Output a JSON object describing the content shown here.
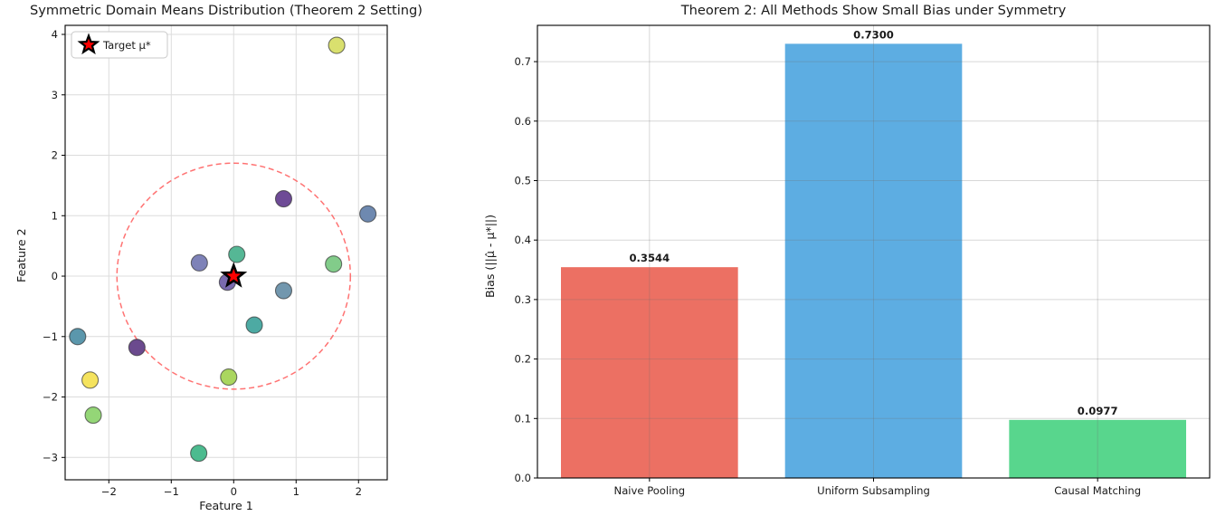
{
  "figure": {
    "background": "#ffffff"
  },
  "chart_data": [
    {
      "type": "scatter",
      "title": "Symmetric Domain Means Distribution (Theorem 2 Setting)",
      "xlabel": "Feature 1",
      "ylabel": "Feature 2",
      "xlim": [
        -2.7,
        2.46
      ],
      "ylim": [
        -3.37,
        4.15
      ],
      "xticks": [
        -2,
        -1,
        0,
        1,
        2
      ],
      "yticks": [
        -3,
        -2,
        -1,
        0,
        1,
        2,
        3,
        4
      ],
      "grid": true,
      "grid_color": "#dcdcdc",
      "legend": {
        "label": "Target μ*",
        "position": "upper-left",
        "marker": "star-icon",
        "marker_color": "#ff0000",
        "marker_edge": "#000000"
      },
      "target": {
        "x": 0,
        "y": 0,
        "color": "#ff0000",
        "edge": "#000000"
      },
      "radius_circle": {
        "cx": 0,
        "cy": 0,
        "r": 1.87,
        "color": "#ff5050",
        "dashed": true
      },
      "point_edge": "#2b2b2b",
      "points": [
        {
          "x": 1.65,
          "y": 3.82,
          "color": "#d9e06e"
        },
        {
          "x": 0.8,
          "y": 1.28,
          "color": "#6e4b96"
        },
        {
          "x": 2.15,
          "y": 1.03,
          "color": "#6e89b0"
        },
        {
          "x": 0.05,
          "y": 0.36,
          "color": "#55b795"
        },
        {
          "x": -0.55,
          "y": 0.22,
          "color": "#7e82b8"
        },
        {
          "x": 1.6,
          "y": 0.2,
          "color": "#82cc8a"
        },
        {
          "x": -0.1,
          "y": -0.1,
          "color": "#7a6aae"
        },
        {
          "x": 0.8,
          "y": -0.24,
          "color": "#7297ae"
        },
        {
          "x": 0.33,
          "y": -0.81,
          "color": "#4daaa3"
        },
        {
          "x": -2.5,
          "y": -1.0,
          "color": "#5b97ac"
        },
        {
          "x": -1.55,
          "y": -1.18,
          "color": "#6b4a8e"
        },
        {
          "x": -2.3,
          "y": -1.72,
          "color": "#f5e35e"
        },
        {
          "x": -0.08,
          "y": -1.67,
          "color": "#aad65f"
        },
        {
          "x": -2.25,
          "y": -2.3,
          "color": "#94d677"
        },
        {
          "x": -0.56,
          "y": -2.93,
          "color": "#4cbb8f"
        }
      ]
    },
    {
      "type": "bar",
      "title": "Theorem 2: All Methods Show Small Bias under Symmetry",
      "ylabel": "Bias (||μ̂ - μ*||)",
      "categories": [
        "Naive Pooling",
        "Uniform Subsampling",
        "Causal Matching"
      ],
      "values": [
        0.3544,
        0.73,
        0.0977
      ],
      "value_labels": [
        "0.3544",
        "0.7300",
        "0.0977"
      ],
      "colors": [
        "#ec7063",
        "#5dade2",
        "#58d68d"
      ],
      "ylim": [
        0,
        0.761
      ],
      "yticks": [
        0,
        0.1,
        0.2,
        0.3,
        0.4,
        0.5,
        0.6,
        0.7
      ],
      "grid": true,
      "grid_color": "#dcdcdc",
      "bar_rel_width": 0.79
    }
  ]
}
